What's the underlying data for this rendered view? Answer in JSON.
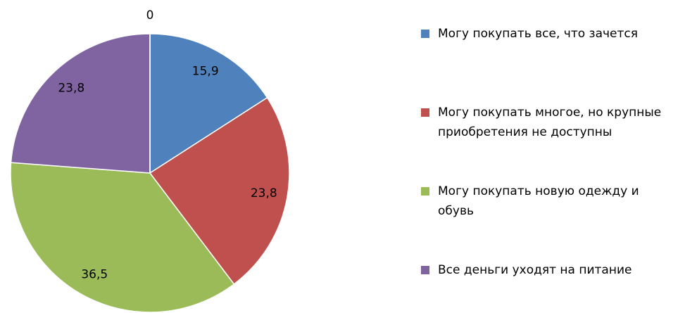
{
  "chart_data": {
    "type": "pie",
    "categories": [
      "Могу покупать все, что зачется",
      "Могу покупать многое, но крупные приобретения не доступны",
      "Могу покупать новую одежду и обувь",
      "Все деньги уходят на питание",
      null
    ],
    "values": [
      15.9,
      23.8,
      36.5,
      23.8,
      0
    ],
    "value_labels": [
      "15,9",
      "23,8",
      "36,5",
      "23,8",
      "0"
    ],
    "colors": [
      "#4f81bd",
      "#c0504d",
      "#9bbb59",
      "#8064a2",
      "#4bacc6"
    ],
    "legend": "right"
  }
}
